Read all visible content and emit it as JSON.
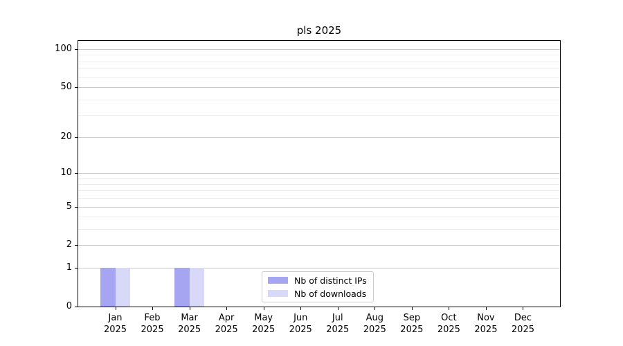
{
  "chart_data": {
    "type": "bar",
    "title": "pls 2025",
    "categories": [
      "Jan 2025",
      "Feb 2025",
      "Mar 2025",
      "Apr 2025",
      "May 2025",
      "Jun 2025",
      "Jul 2025",
      "Aug 2025",
      "Sep 2025",
      "Oct 2025",
      "Nov 2025",
      "Dec 2025"
    ],
    "series": [
      {
        "name": "Nb of distinct IPs",
        "color": "#a5a5f2",
        "values": [
          1,
          0,
          1,
          0,
          0,
          0,
          0,
          0,
          0,
          0,
          0,
          0
        ]
      },
      {
        "name": "Nb of downloads",
        "color": "#d8d8f8",
        "values": [
          1,
          0,
          1,
          0,
          0,
          0,
          0,
          0,
          0,
          0,
          0,
          0
        ]
      }
    ],
    "xlabel": "",
    "ylabel": "",
    "yscale": "log1p",
    "ylim": [
      0,
      116
    ],
    "y_major_ticks": [
      0,
      1,
      2,
      5,
      10,
      20,
      50,
      100
    ],
    "y_minor_gridlines": [
      3,
      4,
      6,
      7,
      8,
      9,
      30,
      40,
      60,
      70,
      80,
      90
    ],
    "grid": "horizontal",
    "legend_position": "lower center",
    "colors": {
      "spine": "#000000",
      "major_grid": "#c9c9c9",
      "minor_grid": "#ececec",
      "text": "#000000",
      "background": "#ffffff"
    }
  }
}
